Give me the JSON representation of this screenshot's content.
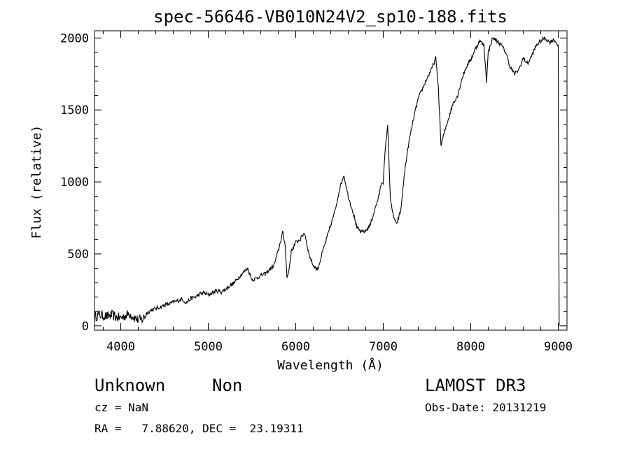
{
  "chart_data": {
    "type": "line",
    "title": "spec-56646-VB010N24V2_sp10-188.fits",
    "xlabel": "Wavelength (Å)",
    "ylabel": "Flux (relative)",
    "xlim": [
      3700,
      9100
    ],
    "ylim": [
      -30,
      2050
    ],
    "xticks": [
      4000,
      5000,
      6000,
      7000,
      8000,
      9000
    ],
    "xtick_labels": [
      "4000",
      "5000",
      "6000",
      "7000",
      "8000",
      "9000"
    ],
    "yticks": [
      0,
      500,
      1000,
      1500,
      2000
    ],
    "ytick_labels": [
      "0",
      "500",
      "1000",
      "1500",
      "2000"
    ],
    "series": [
      {
        "name": "flux",
        "points": [
          [
            3700,
            60
          ],
          [
            3750,
            80
          ],
          [
            3800,
            70
          ],
          [
            3850,
            65
          ],
          [
            3900,
            75
          ],
          [
            3950,
            60
          ],
          [
            4000,
            55
          ],
          [
            4050,
            70
          ],
          [
            4100,
            85
          ],
          [
            4150,
            60
          ],
          [
            4200,
            40
          ],
          [
            4250,
            45
          ],
          [
            4300,
            90
          ],
          [
            4350,
            110
          ],
          [
            4400,
            120
          ],
          [
            4450,
            130
          ],
          [
            4500,
            145
          ],
          [
            4550,
            150
          ],
          [
            4600,
            165
          ],
          [
            4650,
            175
          ],
          [
            4700,
            185
          ],
          [
            4750,
            160
          ],
          [
            4800,
            190
          ],
          [
            4850,
            200
          ],
          [
            4900,
            220
          ],
          [
            4950,
            230
          ],
          [
            5000,
            215
          ],
          [
            5050,
            230
          ],
          [
            5100,
            245
          ],
          [
            5150,
            235
          ],
          [
            5200,
            255
          ],
          [
            5250,
            280
          ],
          [
            5300,
            300
          ],
          [
            5350,
            340
          ],
          [
            5400,
            370
          ],
          [
            5450,
            400
          ],
          [
            5500,
            320
          ],
          [
            5550,
            330
          ],
          [
            5600,
            350
          ],
          [
            5650,
            360
          ],
          [
            5700,
            390
          ],
          [
            5750,
            420
          ],
          [
            5800,
            520
          ],
          [
            5850,
            650
          ],
          [
            5880,
            560
          ],
          [
            5900,
            330
          ],
          [
            5920,
            380
          ],
          [
            5950,
            520
          ],
          [
            6000,
            580
          ],
          [
            6050,
            600
          ],
          [
            6100,
            650
          ],
          [
            6150,
            500
          ],
          [
            6200,
            420
          ],
          [
            6250,
            390
          ],
          [
            6300,
            500
          ],
          [
            6350,
            600
          ],
          [
            6400,
            700
          ],
          [
            6450,
            800
          ],
          [
            6500,
            950
          ],
          [
            6550,
            1050
          ],
          [
            6600,
            900
          ],
          [
            6650,
            800
          ],
          [
            6700,
            680
          ],
          [
            6750,
            650
          ],
          [
            6800,
            660
          ],
          [
            6850,
            700
          ],
          [
            6900,
            800
          ],
          [
            6950,
            900
          ],
          [
            6980,
            1000
          ],
          [
            7000,
            1000
          ],
          [
            7020,
            1200
          ],
          [
            7050,
            1400
          ],
          [
            7080,
            900
          ],
          [
            7100,
            800
          ],
          [
            7150,
            700
          ],
          [
            7200,
            800
          ],
          [
            7250,
            1100
          ],
          [
            7300,
            1300
          ],
          [
            7350,
            1450
          ],
          [
            7400,
            1580
          ],
          [
            7450,
            1650
          ],
          [
            7500,
            1720
          ],
          [
            7550,
            1780
          ],
          [
            7600,
            1860
          ],
          [
            7630,
            1650
          ],
          [
            7660,
            1250
          ],
          [
            7700,
            1350
          ],
          [
            7750,
            1450
          ],
          [
            7800,
            1550
          ],
          [
            7850,
            1600
          ],
          [
            7900,
            1720
          ],
          [
            7950,
            1800
          ],
          [
            8000,
            1850
          ],
          [
            8050,
            1920
          ],
          [
            8100,
            1980
          ],
          [
            8150,
            1950
          ],
          [
            8180,
            1700
          ],
          [
            8200,
            1900
          ],
          [
            8250,
            2000
          ],
          [
            8300,
            1980
          ],
          [
            8350,
            1950
          ],
          [
            8400,
            1900
          ],
          [
            8450,
            1800
          ],
          [
            8500,
            1750
          ],
          [
            8550,
            1780
          ],
          [
            8600,
            1860
          ],
          [
            8650,
            1820
          ],
          [
            8700,
            1880
          ],
          [
            8750,
            1950
          ],
          [
            8800,
            1980
          ],
          [
            8850,
            2000
          ],
          [
            8900,
            1970
          ],
          [
            8950,
            1990
          ],
          [
            9000,
            1950
          ],
          [
            9010,
            0
          ]
        ]
      }
    ]
  },
  "info": {
    "object_class": "Unknown",
    "object_subclass": "Non",
    "survey": "LAMOST DR3",
    "redshift_line": "cz = NaN",
    "obs_date_line": "Obs-Date: 20131219",
    "coords_line": "RA =   7.88620, DEC =  23.19311"
  }
}
